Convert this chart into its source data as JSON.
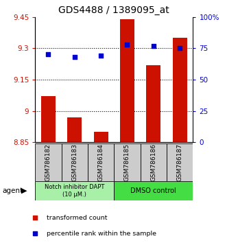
{
  "title": "GDS4488 / 1389095_at",
  "samples": [
    "GSM786182",
    "GSM786183",
    "GSM786184",
    "GSM786185",
    "GSM786186",
    "GSM786187"
  ],
  "red_values": [
    9.07,
    8.97,
    8.9,
    9.44,
    9.22,
    9.35
  ],
  "blue_values": [
    70,
    68,
    69,
    78,
    77,
    75
  ],
  "ylim_left": [
    8.85,
    9.45
  ],
  "ylim_right": [
    0,
    100
  ],
  "yticks_left": [
    8.85,
    9.0,
    9.15,
    9.3,
    9.45
  ],
  "yticks_right": [
    0,
    25,
    50,
    75,
    100
  ],
  "ytick_labels_left": [
    "8.85",
    "9",
    "9.15",
    "9.3",
    "9.45"
  ],
  "ytick_labels_right": [
    "0",
    "25",
    "50",
    "75",
    "100%"
  ],
  "grid_lines": [
    9.0,
    9.15,
    9.3
  ],
  "group1_label": "Notch inhibitor DAPT\n(10 μM.)",
  "group2_label": "DMSO control",
  "group1_color": "#a8f0a8",
  "group2_color": "#44dd44",
  "agent_label": "agent",
  "bar_color": "#cc1100",
  "dot_color": "#0000cc",
  "legend_red": "transformed count",
  "legend_blue": "percentile rank within the sample",
  "sample_box_color": "#cccccc",
  "title_fontsize": 10,
  "tick_fontsize": 7.5,
  "bar_width": 0.55
}
